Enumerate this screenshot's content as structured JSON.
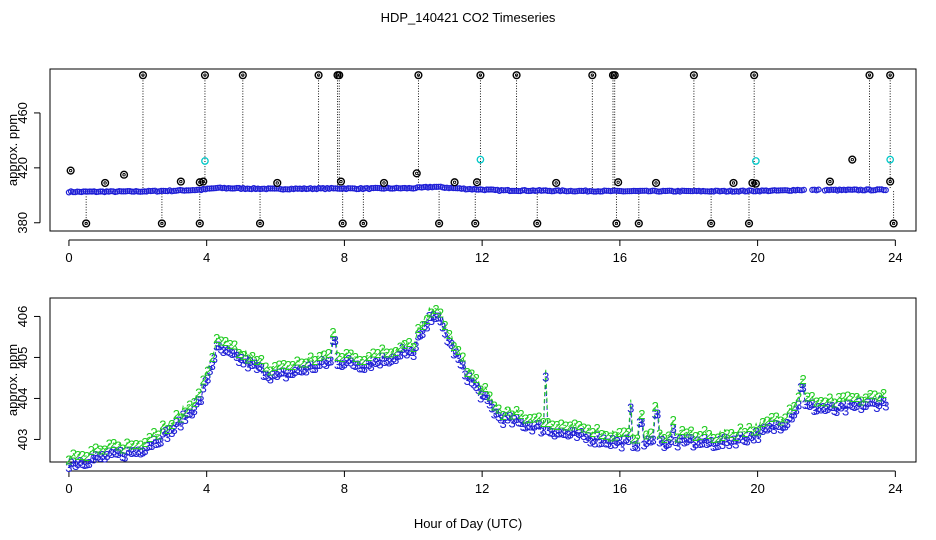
{
  "title": "HDP_140421  CO2 Timeseries",
  "xlabel": "Hour of Day (UTC)",
  "colors": {
    "outlier": "#000000",
    "main": "#1f1fd6",
    "mid": "#00c8c8",
    "secondary": "#22cc22",
    "frame": "#000000"
  },
  "chart_data": [
    {
      "type": "scatter",
      "name": "top-panel",
      "ylabel": "approx. ppm",
      "xlim": [
        -0.55,
        24.6
      ],
      "ylim": [
        374,
        492
      ],
      "xticks": [
        0,
        4,
        8,
        12,
        16,
        20,
        24
      ],
      "yticks": [
        380,
        420,
        460
      ],
      "ytick_labels": [
        "380",
        "420",
        "460"
      ],
      "baseline": [
        [
          0.0,
          402.5
        ],
        [
          2.0,
          402.8
        ],
        [
          3.0,
          403.3
        ],
        [
          3.8,
          404.0
        ],
        [
          4.3,
          405.3
        ],
        [
          6.0,
          404.6
        ],
        [
          7.7,
          405.0
        ],
        [
          8.5,
          404.9
        ],
        [
          10.0,
          405.2
        ],
        [
          10.6,
          406.2
        ],
        [
          11.5,
          404.7
        ],
        [
          12.5,
          403.6
        ],
        [
          14.5,
          403.2
        ],
        [
          16.0,
          403.0
        ],
        [
          19.0,
          403.0
        ],
        [
          20.0,
          403.2
        ],
        [
          20.8,
          403.5
        ],
        [
          21.2,
          403.9
        ],
        [
          22.3,
          403.8
        ],
        [
          23.7,
          404.0
        ]
      ],
      "gaps": [
        [
          21.35,
          21.55
        ],
        [
          21.8,
          21.95
        ]
      ],
      "high_outliers": [
        2.15,
        3.95,
        5.05,
        7.25,
        7.8,
        7.85,
        10.15,
        11.95,
        13.0,
        15.2,
        15.8,
        15.85,
        18.15,
        19.9,
        23.25,
        23.85
      ],
      "low_outliers": [
        0.5,
        2.7,
        3.8,
        5.55,
        7.95,
        8.55,
        10.75,
        11.8,
        13.6,
        15.9,
        16.55,
        18.65,
        19.75,
        23.95
      ],
      "mid_outliers": [
        [
          0.05,
          418
        ],
        [
          1.05,
          409
        ],
        [
          1.6,
          415
        ],
        [
          3.25,
          410
        ],
        [
          3.8,
          409.5
        ],
        [
          3.9,
          410
        ],
        [
          6.05,
          409
        ],
        [
          7.9,
          410
        ],
        [
          9.15,
          409
        ],
        [
          10.1,
          416
        ],
        [
          11.2,
          409.5
        ],
        [
          11.85,
          409.5
        ],
        [
          14.15,
          409
        ],
        [
          15.95,
          409.5
        ],
        [
          17.05,
          409
        ],
        [
          19.3,
          409
        ],
        [
          19.85,
          409
        ],
        [
          19.95,
          408.5
        ],
        [
          22.1,
          410
        ],
        [
          22.75,
          426
        ],
        [
          23.85,
          410
        ]
      ],
      "cyan_points": [
        [
          3.95,
          425
        ],
        [
          11.95,
          426
        ],
        [
          19.95,
          425
        ],
        [
          23.85,
          426
        ]
      ]
    },
    {
      "type": "line",
      "name": "bottom-panel",
      "ylabel": "approx. ppm",
      "xlim": [
        -0.55,
        24.6
      ],
      "ylim": [
        402.45,
        406.45
      ],
      "xticks": [
        0,
        4,
        8,
        12,
        16,
        20,
        24
      ],
      "yticks": [
        403,
        404,
        405,
        406
      ],
      "marker_series": [
        {
          "name": "3",
          "color": "#1f1fd6",
          "offset": -0.07
        },
        {
          "name": "2",
          "color": "#22cc22",
          "offset": 0.12
        }
      ],
      "spikes": [
        [
          13.85,
          404.6
        ],
        [
          16.3,
          403.85
        ],
        [
          16.6,
          403.5
        ],
        [
          17.05,
          403.7
        ],
        [
          17.55,
          403.35
        ],
        [
          18.05,
          403.1
        ],
        [
          21.3,
          404.35
        ],
        [
          7.7,
          405.5
        ],
        [
          9.7,
          405.3
        ],
        [
          10.15,
          405.6
        ]
      ]
    }
  ]
}
